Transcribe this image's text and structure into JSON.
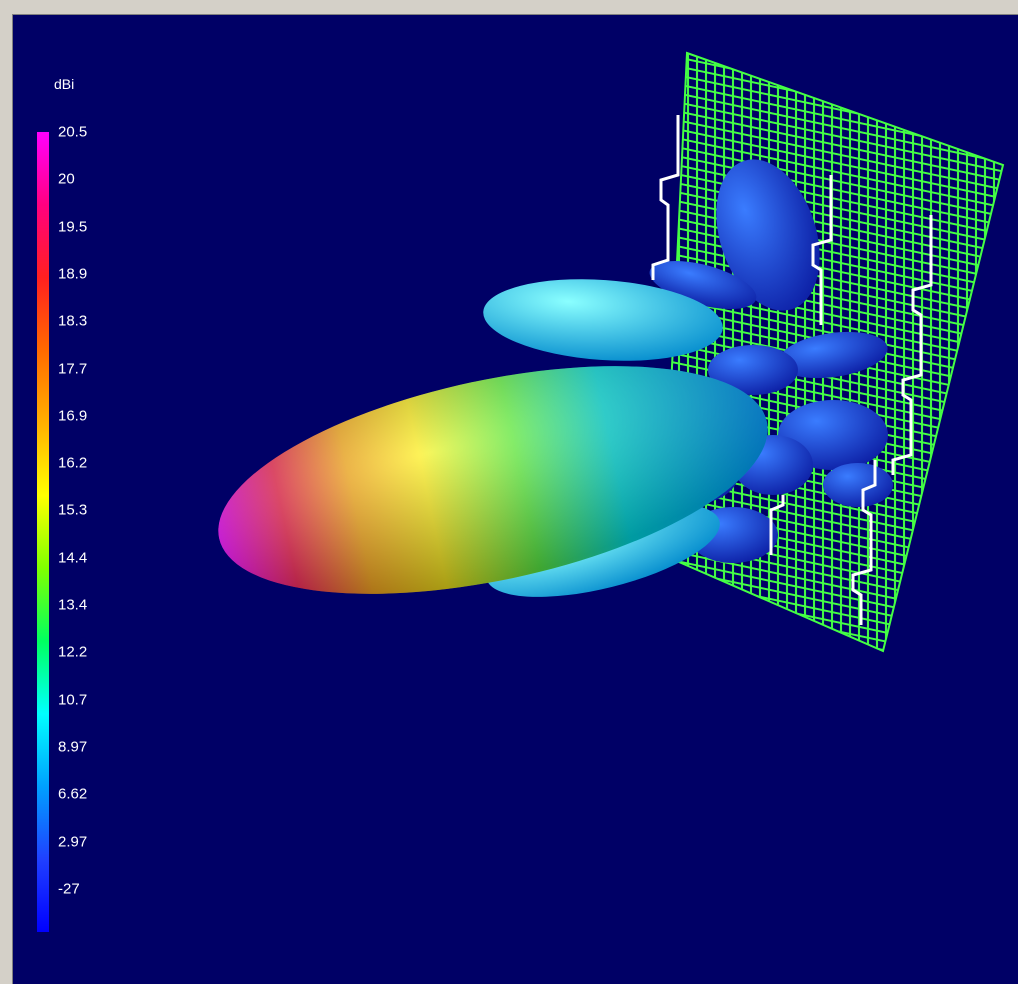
{
  "legend": {
    "unit": "dBi",
    "ticks": [
      "20.5",
      "20",
      "19.5",
      "18.9",
      "18.3",
      "17.7",
      "16.9",
      "16.2",
      "15.3",
      "14.4",
      "13.4",
      "12.2",
      "10.7",
      "8.97",
      "6.62",
      "2.97",
      "-27"
    ],
    "colors": [
      "#ff00ff",
      "#ff0080",
      "#ff2020",
      "#ff6a00",
      "#ffb000",
      "#ffff00",
      "#80ff00",
      "#00ff60",
      "#00ffff",
      "#00a0ff",
      "#2040ff",
      "#0000ff"
    ]
  },
  "scene": {
    "background": "#000066",
    "reflector_color": "#44ff44",
    "dipole_color": "#ffffff",
    "lobe_colors": {
      "main_tip": "#ff00ff",
      "main_mid": "#ffee00",
      "main_base": "#00ddff",
      "side": "#22ccff",
      "back": "#1a3cff"
    }
  }
}
